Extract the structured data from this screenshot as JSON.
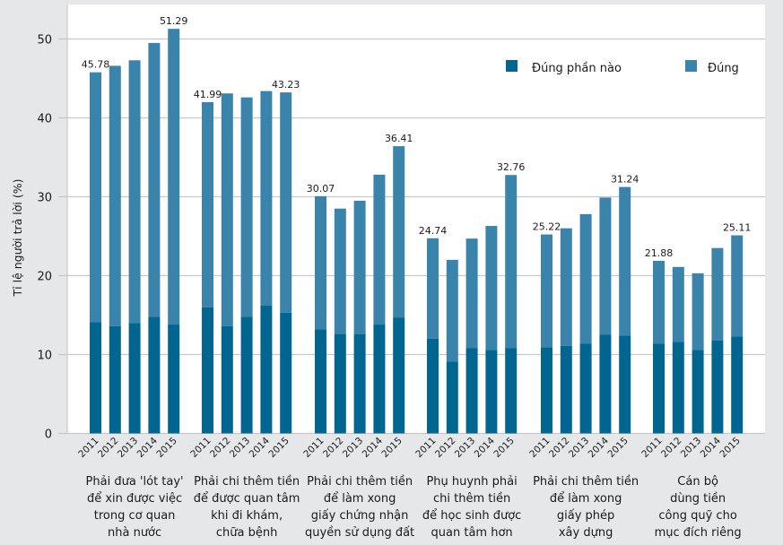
{
  "chart_data": {
    "type": "bar",
    "stacked": true,
    "title": "",
    "xlabel": "",
    "ylabel": "Tỉ lệ người trả lời (%)",
    "ylim": [
      0,
      53
    ],
    "yticks": [
      0,
      10,
      20,
      30,
      40,
      50
    ],
    "grid": true,
    "legend_position": "top-right",
    "years": [
      "2011",
      "2012",
      "2013",
      "2014",
      "2015"
    ],
    "groups": [
      {
        "label_lines": [
          "Phải đưa 'lót tay'",
          "để xin được việc",
          "trong cơ quan",
          "nhà nước"
        ],
        "partly_true": [
          14.1,
          13.6,
          14.0,
          14.8,
          13.8
        ],
        "total": [
          45.78,
          46.6,
          47.3,
          49.5,
          51.29
        ],
        "data_labels": {
          "2011": "45.78",
          "2015": "51.29"
        }
      },
      {
        "label_lines": [
          "Phải chi thêm tiền",
          "để được quan tâm",
          "khi đi khám,",
          "chữa bệnh"
        ],
        "partly_true": [
          16.0,
          13.6,
          14.8,
          16.2,
          15.3
        ],
        "total": [
          41.99,
          43.1,
          42.6,
          43.4,
          43.23
        ],
        "data_labels": {
          "2011": "41.99",
          "2015": "43.23"
        }
      },
      {
        "label_lines": [
          "Phải chi thêm tiền",
          "để làm xong",
          "giấy chứng nhận",
          "quyền sử dụng đất"
        ],
        "partly_true": [
          13.2,
          12.6,
          12.6,
          13.8,
          14.7
        ],
        "total": [
          30.07,
          28.5,
          29.5,
          32.8,
          36.41
        ],
        "data_labels": {
          "2011": "30.07",
          "2015": "36.41"
        }
      },
      {
        "label_lines": [
          "Phụ huynh phải",
          "chi thêm tiền",
          "để học sinh được",
          "quan tâm hơn"
        ],
        "partly_true": [
          12.0,
          9.1,
          10.8,
          10.6,
          10.8
        ],
        "total": [
          24.74,
          22.0,
          24.7,
          26.3,
          32.76
        ],
        "data_labels": {
          "2011": "24.74",
          "2015": "32.76"
        }
      },
      {
        "label_lines": [
          "Phải chi thêm tiền",
          "để làm xong",
          "giấy phép",
          "xây dựng"
        ],
        "partly_true": [
          10.9,
          11.1,
          11.4,
          12.5,
          12.4
        ],
        "total": [
          25.22,
          26.0,
          27.8,
          29.9,
          31.24
        ],
        "data_labels": {
          "2011": "25.22",
          "2015": "31.24"
        }
      },
      {
        "label_lines": [
          "Cán bộ",
          "dùng tiền",
          "công quỹ cho",
          "mục đích riêng"
        ],
        "partly_true": [
          11.4,
          11.6,
          10.6,
          11.8,
          12.3
        ],
        "total": [
          21.88,
          21.1,
          20.3,
          23.5,
          25.11
        ],
        "data_labels": {
          "2011": "21.88",
          "2015": "25.11"
        }
      }
    ],
    "series": [
      {
        "name": "Đúng phần nào",
        "key": "partly_true",
        "color": "#006690"
      },
      {
        "name": "Đúng",
        "key": "true",
        "color": "#3a84ab"
      }
    ]
  },
  "colors": {
    "background": "#e6e7e8",
    "plot_background": "#ffffff",
    "gridline": "#c8c8c8"
  }
}
